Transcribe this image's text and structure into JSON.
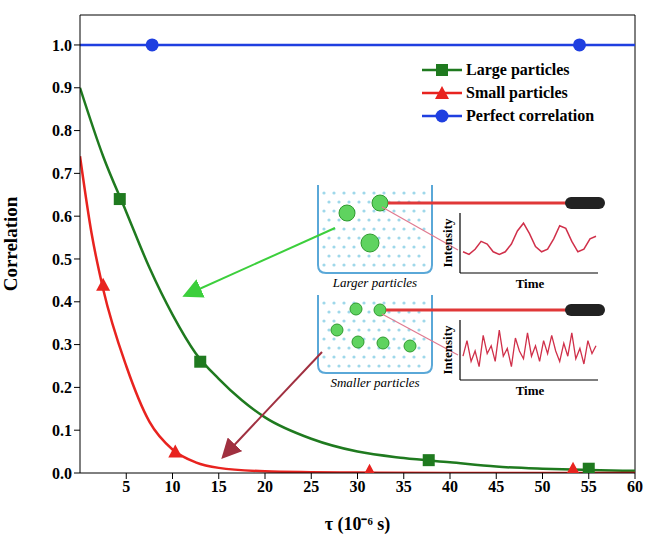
{
  "chart_data": {
    "type": "line",
    "x_label": "τ (10⁻⁶ s)",
    "y_label": "Correlation",
    "xlim": [
      0,
      60
    ],
    "xticks": [
      5,
      10,
      15,
      20,
      25,
      30,
      35,
      40,
      45,
      50,
      55,
      60
    ],
    "ylim": [
      0,
      1.07
    ],
    "yticks": [
      {
        "value": 0,
        "label": "0.0"
      },
      {
        "value": 0.1,
        "label": "0.1"
      },
      {
        "value": 0.2,
        "label": "0.2"
      },
      {
        "value": 0.3,
        "label": "0.3"
      },
      {
        "value": 0.4,
        "label": "0.4"
      },
      {
        "value": 0.5,
        "label": "0.5"
      },
      {
        "value": 0.6,
        "label": "0.6"
      },
      {
        "value": 0.7,
        "label": "0.7"
      },
      {
        "value": 0.8,
        "label": "0.8"
      },
      {
        "value": 0.9,
        "label": "0.9"
      },
      {
        "value": 1,
        "label": "1.0"
      }
    ],
    "grid": false,
    "legend": "upper right",
    "series": [
      {
        "name": "Large particles",
        "color": "#1f7a1f",
        "marker": "square",
        "x": [
          0,
          2.5,
          5,
          7.5,
          10,
          12.5,
          15,
          17.5,
          20,
          25,
          30,
          35,
          40,
          45,
          50,
          55,
          60
        ],
        "values": [
          0.9,
          0.74,
          0.61,
          0.48,
          0.37,
          0.28,
          0.22,
          0.17,
          0.13,
          0.08,
          0.05,
          0.035,
          0.025,
          0.015,
          0.01,
          0.007,
          0.005
        ],
        "markers": {
          "x": [
            4.3,
            13,
            37.7,
            55
          ],
          "values": [
            0.64,
            0.26,
            0.03,
            0.01
          ]
        }
      },
      {
        "name": "Small particles",
        "color": "#e8231f",
        "marker": "triangle",
        "x": [
          0,
          1.25,
          2.5,
          5,
          7.5,
          10,
          12.5,
          15,
          20,
          25,
          30,
          40,
          50,
          60
        ],
        "values": [
          0.74,
          0.56,
          0.43,
          0.25,
          0.12,
          0.055,
          0.025,
          0.012,
          0.004,
          0.002,
          0.001,
          0,
          0,
          0
        ],
        "markers": {
          "x": [
            2.5,
            10.3,
            31.3,
            53.3
          ],
          "values": [
            0.44,
            0.05,
            0.005,
            0.01
          ]
        }
      },
      {
        "name": "Perfect correlation",
        "color": "#1f3fe0",
        "marker": "circle",
        "x": [
          0,
          60
        ],
        "values": [
          1,
          1
        ],
        "markers": {
          "x": [
            7.8,
            54
          ],
          "values": [
            1,
            1
          ]
        }
      }
    ],
    "annotations": {
      "large_label": "Larger particles",
      "small_label": "Smaller particles",
      "intensity_label": "Intensity",
      "time_label": "Time",
      "large_trace": [
        0.35,
        0.3,
        0.4,
        0.55,
        0.5,
        0.35,
        0.3,
        0.35,
        0.5,
        0.75,
        0.9,
        0.7,
        0.45,
        0.35,
        0.4,
        0.6,
        0.85,
        0.8,
        0.55,
        0.35,
        0.4,
        0.6,
        0.65
      ],
      "small_trace": [
        0.4,
        0.7,
        0.3,
        0.5,
        0.2,
        0.8,
        0.45,
        0.6,
        0.3,
        0.9,
        0.4,
        0.55,
        0.2,
        0.75,
        0.5,
        0.35,
        0.85,
        0.4,
        0.6,
        0.3,
        0.7,
        0.45,
        0.8,
        0.5,
        0.3,
        0.65,
        0.4,
        0.85,
        0.35,
        0.55,
        0.25,
        0.7,
        0.45,
        0.6
      ]
    }
  }
}
